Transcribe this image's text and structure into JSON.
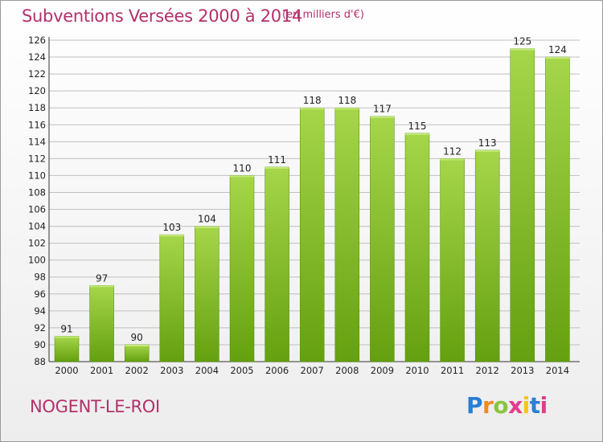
{
  "header": {
    "title": "Subventions Versées 2000 à 2014",
    "subtitle": "(en milliers d'€)"
  },
  "footer": {
    "place": "NOGENT-LE-ROI",
    "logo": "Proxiti"
  },
  "colors": {
    "accent": "#b3306a",
    "bar_light": "#a6d64a",
    "bar_dark": "#64a00f",
    "grid": "#c0c0c0"
  },
  "chart_data": {
    "type": "bar",
    "categories": [
      "2000",
      "2001",
      "2002",
      "2003",
      "2004",
      "2005",
      "2006",
      "2007",
      "2008",
      "2009",
      "2010",
      "2011",
      "2012",
      "2013",
      "2014"
    ],
    "values": [
      91,
      97,
      90,
      103,
      104,
      110,
      111,
      118,
      118,
      117,
      115,
      112,
      113,
      125,
      124
    ],
    "title": "Subventions Versées 2000 à 2014",
    "subtitle": "(en milliers d'€)",
    "xlabel": "",
    "ylabel": "",
    "ylim": [
      88,
      126
    ],
    "ytick_step": 2,
    "grid": true,
    "data_labels": true
  }
}
